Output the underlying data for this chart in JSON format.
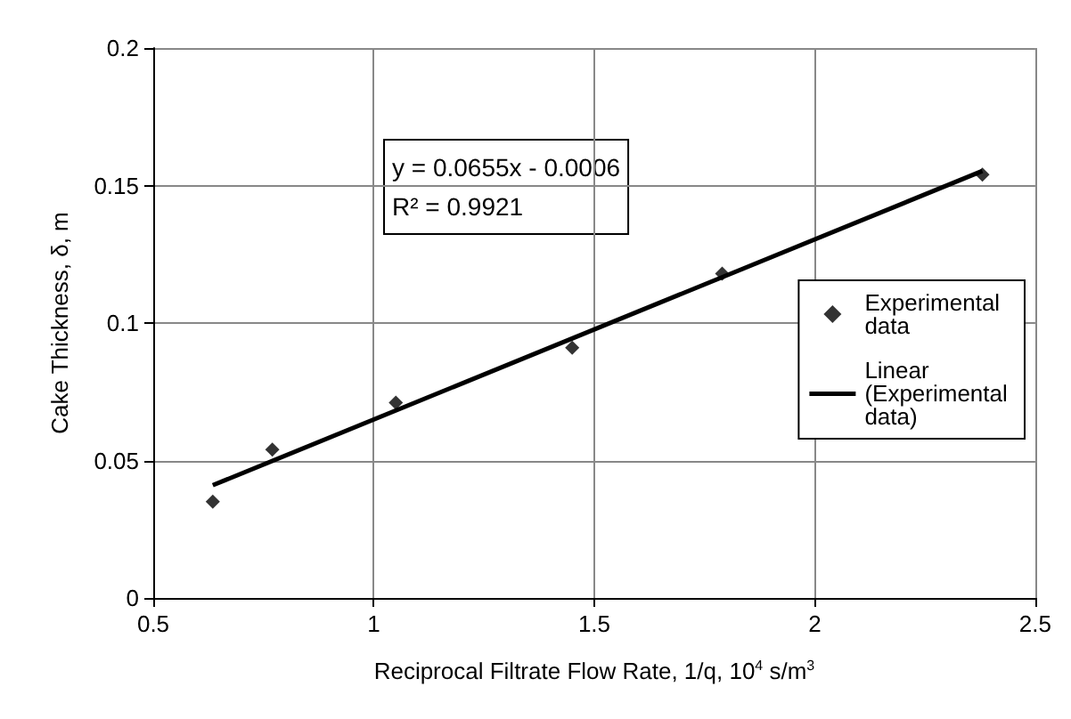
{
  "chart_data": {
    "type": "scatter",
    "xlabel": "Reciprocal Filtrate Flow Rate, 1/q, 10$^{4}$ s/m$^{3}$",
    "ylabel": "Cake Thickness, δ, m",
    "annotations": [
      "y = 0.0655x - 0.0006\nR² = 0.9921"
    ],
    "series": [
      {
        "name": "Experimental data",
        "color": "#000000",
        "marker": "diamond",
        "x": [
          0.635,
          0.77,
          1.05,
          1.45,
          1.79,
          2.38
        ],
        "values": [
          0.035,
          0.054,
          0.071,
          0.091,
          0.118,
          0.154
        ]
      },
      {
        "name": "Linear (Experimental data)",
        "type": "line",
        "color": "#000000",
        "marker": "none",
        "line_style": "solid",
        "x": [
          0.635,
          2.38
        ],
        "values": [
          0.041,
          0.1553
        ]
      }
    ],
    "xlim": [
      0.5,
      2.5
    ],
    "xticks": [
      0.5,
      1,
      1.5,
      2,
      2.5
    ],
    "ylim": [
      0,
      0.2
    ],
    "yticks": [
      0,
      0.05,
      0.1,
      0.15,
      0.2
    ],
    "grid": true,
    "legend": "right"
  }
}
